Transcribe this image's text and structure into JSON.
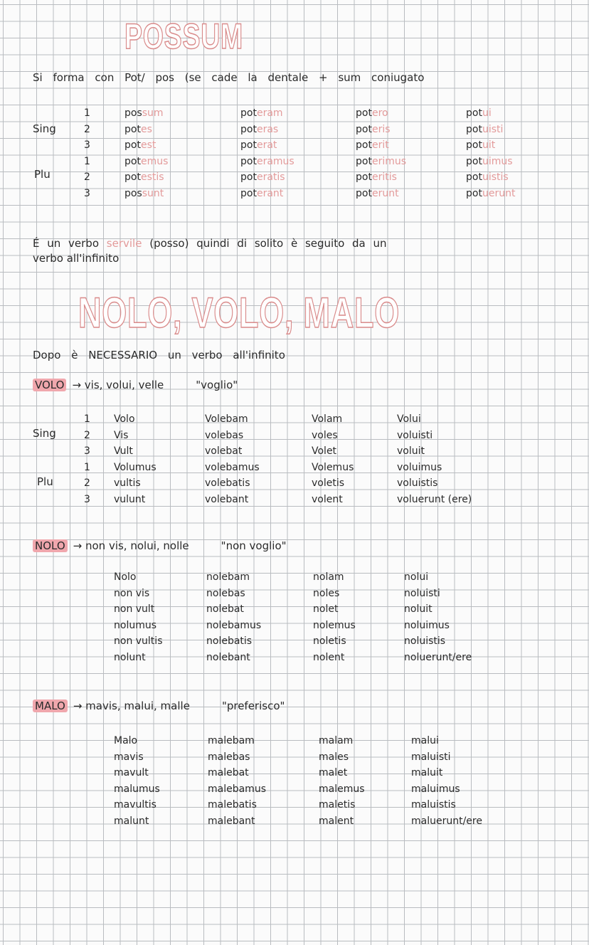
{
  "possum": {
    "title": "POSSUM",
    "intro": "Si forma con Pot/ pos (se cade la dentale + sum coniugato",
    "labels": {
      "sing": "Sing",
      "plu": "Plu",
      "persons": [
        "1",
        "2",
        "3",
        "1",
        "2",
        "3"
      ]
    },
    "columns": [
      [
        [
          "pos",
          "sum"
        ],
        [
          "pot",
          "es"
        ],
        [
          "pot",
          "est"
        ],
        [
          "pot",
          "emus"
        ],
        [
          "pot",
          "estis"
        ],
        [
          "pos",
          "sunt"
        ]
      ],
      [
        [
          "pot",
          "eram"
        ],
        [
          "pot",
          "eras"
        ],
        [
          "pot",
          "erat"
        ],
        [
          "pot",
          "eramus"
        ],
        [
          "pot",
          "eratis"
        ],
        [
          "pot",
          "erant"
        ]
      ],
      [
        [
          "pot",
          "ero"
        ],
        [
          "pot",
          "eris"
        ],
        [
          "pot",
          "erit"
        ],
        [
          "pot",
          "erimus"
        ],
        [
          "pot",
          "eritis"
        ],
        [
          "pot",
          "erunt"
        ]
      ],
      [
        [
          "pot",
          "ui"
        ],
        [
          "pot",
          "uisti"
        ],
        [
          "pot",
          "uit"
        ],
        [
          "pot",
          "uimus"
        ],
        [
          "pot",
          "uistis"
        ],
        [
          "pot",
          "uerunt"
        ]
      ]
    ],
    "note_a": "É un verbo",
    "note_pink": "servile",
    "note_b": "(posso) quindi di solito è seguito da un",
    "note_c": "verbo all'infinito"
  },
  "nvm": {
    "title": "NOLO, VOLO, MALO",
    "note": "Dopo è NECESSARIO un verbo all'infinito"
  },
  "volo": {
    "label": "VOLO",
    "forms": "→ vis, volui, velle",
    "meaning": "\"voglio\"",
    "sing": "Sing",
    "plu": "Plu",
    "persons": [
      "1",
      "2",
      "3",
      "1",
      "2",
      "3"
    ],
    "columns": [
      [
        "Volo",
        "Vis",
        "Vult",
        "Volumus",
        "vultis",
        "vulunt"
      ],
      [
        "Volebam",
        "volebas",
        "volebat",
        "volebamus",
        "volebatis",
        "volebant"
      ],
      [
        "Volam",
        "voles",
        "Volet",
        "Volemus",
        "voletis",
        "volent"
      ],
      [
        "Volui",
        "voluisti",
        "voluit",
        "voluimus",
        "voluistis",
        "voluerunt (ere)"
      ]
    ]
  },
  "nolo": {
    "label": "NOLO",
    "forms": "→ non vis, nolui, nolle",
    "meaning": "\"non voglio\"",
    "columns": [
      [
        "Nolo",
        "non vis",
        "non vult",
        "nolumus",
        "non vultis",
        "nolunt"
      ],
      [
        "nolebam",
        "nolebas",
        "nolebat",
        "nolebamus",
        "nolebatis",
        "nolebant"
      ],
      [
        "nolam",
        "noles",
        "nolet",
        "nolemus",
        "noletis",
        "nolent"
      ],
      [
        "nolui",
        "noluisti",
        "noluit",
        "noluimus",
        "noluistis",
        "noluerunt/ere"
      ]
    ]
  },
  "malo": {
    "label": "MALO",
    "forms": "→ mavis, malui, malle",
    "meaning": "\"preferisco\"",
    "columns": [
      [
        "Malo",
        "mavis",
        "mavult",
        "malumus",
        "mavultis",
        "malunt"
      ],
      [
        "malebam",
        "malebas",
        "malebat",
        "malebamus",
        "malebatis",
        "malebant"
      ],
      [
        "malam",
        "males",
        "malet",
        "malemus",
        "maletis",
        "malent"
      ],
      [
        "malui",
        "maluisti",
        "maluit",
        "maluimus",
        "maluistis",
        "maluerunt/ere"
      ]
    ]
  }
}
